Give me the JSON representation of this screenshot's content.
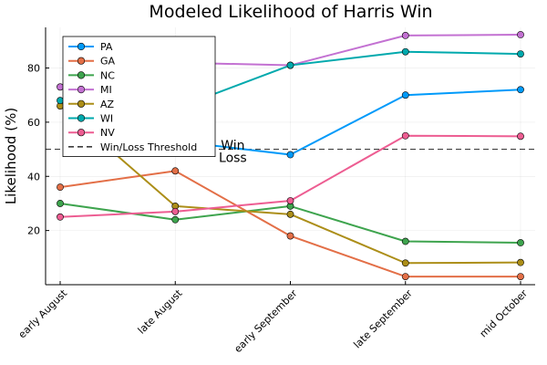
{
  "chart_data": {
    "type": "line",
    "title": "Modeled Likelihood of Harris Win",
    "xlabel": "",
    "ylabel": "Likelihood (%)",
    "categories": [
      "early August",
      "late August",
      "early September",
      "late September",
      "mid October"
    ],
    "yticks": [
      20,
      40,
      60,
      80
    ],
    "ylim": [
      0,
      95
    ],
    "grid": true,
    "legend_position": "top-left",
    "series": [
      {
        "name": "PA",
        "color": "#009AFA",
        "values": [
          null,
          53,
          48,
          70,
          72
        ]
      },
      {
        "name": "GA",
        "color": "#E36F47",
        "values": [
          36,
          42,
          18,
          3,
          3
        ]
      },
      {
        "name": "NC",
        "color": "#3EA44E",
        "values": [
          30,
          24,
          29,
          16,
          15.5
        ]
      },
      {
        "name": "MI",
        "color": "#C371D2",
        "values": [
          73,
          82,
          81,
          92,
          92.3
        ]
      },
      {
        "name": "AZ",
        "color": "#AC8E18",
        "values": [
          66,
          29,
          26,
          8,
          8.2
        ]
      },
      {
        "name": "WI",
        "color": "#00A9AD",
        "values": [
          68,
          65,
          81,
          86,
          85.2
        ]
      },
      {
        "name": "NV",
        "color": "#ED5D92",
        "values": [
          25,
          27,
          31,
          55,
          54.8
        ]
      }
    ],
    "threshold": {
      "name": "Win/Loss Threshold",
      "value": 50
    },
    "annotations": [
      {
        "text": "Win",
        "x_index": 1.5,
        "y": 51.5
      },
      {
        "text": "Loss",
        "x_index": 1.5,
        "y": 47
      }
    ]
  }
}
